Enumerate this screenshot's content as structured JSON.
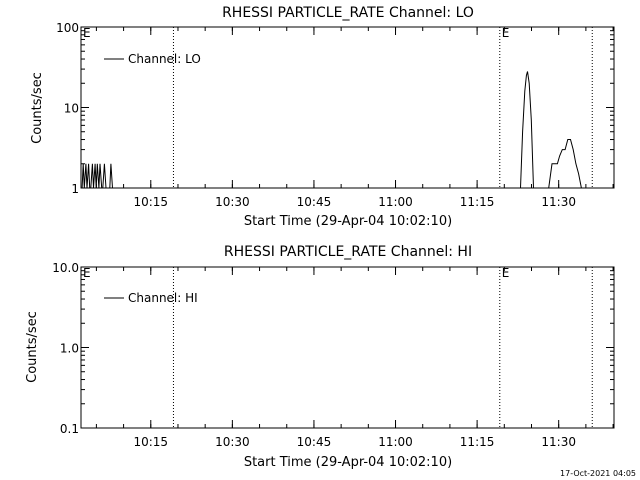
{
  "footer": {
    "timestamp": "17-Oct-2021 04:05"
  },
  "chart_data": [
    {
      "type": "line",
      "title": "RHESSI PARTICLE_RATE Channel: LO",
      "xlabel": "Start Time (29-Apr-04 10:02:10)",
      "ylabel": "Counts/sec",
      "yscale": "log",
      "ylim": [
        1,
        100
      ],
      "y_tick_labels": [
        "1",
        "10",
        "100"
      ],
      "y_tick_values": [
        1,
        10,
        100
      ],
      "xlim_minutes": [
        0,
        98
      ],
      "x_tick_labels": [
        "10:15",
        "10:30",
        "10:45",
        "11:00",
        "11:15",
        "11:30"
      ],
      "x_tick_minutes": [
        12.83,
        27.83,
        42.83,
        57.83,
        72.83,
        87.83
      ],
      "markers": [
        {
          "label": "E",
          "minute": 0,
          "style": "edge"
        },
        {
          "label": "",
          "minute": 17.0,
          "style": "dotted"
        },
        {
          "label": "E",
          "minute": 77.0,
          "style": "dotted"
        },
        {
          "label": "",
          "minute": 94.0,
          "style": "dotted"
        }
      ],
      "legend": "top-left",
      "series": [
        {
          "name": "Channel: LO",
          "segments": [
            {
              "x": [
                0.2,
                0.4,
                0.6,
                0.9,
                1.1,
                1.4,
                1.6,
                1.8,
                2.1,
                2.3,
                2.6,
                2.8,
                3.0,
                3.3,
                3.5,
                3.8,
                4.0,
                4.3,
                4.6,
                5.3,
                5.5,
                5.8
              ],
              "y": [
                1,
                2,
                1,
                2,
                1,
                2,
                1,
                1,
                2,
                1,
                2,
                1,
                2,
                1,
                2,
                1,
                1,
                2,
                1,
                1,
                2,
                1
              ]
            },
            {
              "x": [
                80.8,
                81.2,
                81.6,
                81.9,
                82.1,
                82.4,
                82.8,
                83.2
              ],
              "y": [
                1,
                5,
                16,
                25,
                28,
                20,
                7,
                1
              ]
            },
            {
              "x": [
                86.0,
                86.6,
                87.1,
                87.6,
                88.0,
                88.5,
                89.0,
                89.5,
                90.0,
                90.5,
                91.0,
                91.5,
                92.0
              ],
              "y": [
                1,
                2,
                2,
                2,
                2.5,
                3,
                3,
                4,
                4,
                3,
                2,
                1.5,
                1
              ]
            }
          ]
        }
      ]
    },
    {
      "type": "line",
      "title": "RHESSI PARTICLE_RATE Channel: HI",
      "xlabel": "Start Time (29-Apr-04 10:02:10)",
      "ylabel": "Counts/sec",
      "yscale": "log",
      "ylim": [
        0.1,
        10
      ],
      "y_tick_labels": [
        "0.1",
        "1.0",
        "10.0"
      ],
      "y_tick_values": [
        0.1,
        1,
        10
      ],
      "xlim_minutes": [
        0,
        98
      ],
      "x_tick_labels": [
        "10:15",
        "10:30",
        "10:45",
        "11:00",
        "11:15",
        "11:30"
      ],
      "x_tick_minutes": [
        12.83,
        27.83,
        42.83,
        57.83,
        72.83,
        87.83
      ],
      "markers": [
        {
          "label": "E",
          "minute": 0,
          "style": "edge"
        },
        {
          "label": "",
          "minute": 17.0,
          "style": "dotted"
        },
        {
          "label": "E",
          "minute": 77.0,
          "style": "dotted"
        },
        {
          "label": "",
          "minute": 94.0,
          "style": "dotted"
        }
      ],
      "legend": "top-left",
      "series": [
        {
          "name": "Channel: HI",
          "segments": []
        }
      ]
    }
  ]
}
